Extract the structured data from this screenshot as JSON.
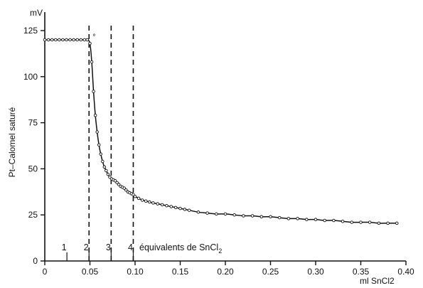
{
  "chart_data": {
    "type": "line",
    "ylabel": "Pt–Calomel saturé",
    "y_unit": "mV",
    "x_unit": "ml SnCl2",
    "xlim": [
      0,
      0.4
    ],
    "ylim": [
      0,
      125
    ],
    "x_ticks": [
      {
        "value": 0,
        "label": "0"
      },
      {
        "value": 0.05,
        "label": "0.05"
      },
      {
        "value": 0.1,
        "label": "0.10"
      },
      {
        "value": 0.15,
        "label": "0.15"
      },
      {
        "value": 0.2,
        "label": "0.20"
      },
      {
        "value": 0.25,
        "label": "0.25"
      },
      {
        "value": 0.3,
        "label": "0.30"
      },
      {
        "value": 0.35,
        "label": "0.35"
      },
      {
        "value": 0.4,
        "label": "0.40"
      }
    ],
    "y_ticks": [
      {
        "value": 0,
        "label": "0"
      },
      {
        "value": 25,
        "label": "25"
      },
      {
        "value": 50,
        "label": "50"
      },
      {
        "value": 75,
        "label": "75"
      },
      {
        "value": 100,
        "label": "100"
      },
      {
        "value": 125,
        "label": "125"
      }
    ],
    "equivalents": {
      "markers": [
        {
          "label": "1",
          "x": 0.0245,
          "dashed": false
        },
        {
          "label": "2",
          "x": 0.049,
          "dashed": true
        },
        {
          "label": "3",
          "x": 0.0735,
          "dashed": true
        },
        {
          "label": "4",
          "x": 0.098,
          "dashed": true
        }
      ],
      "caption_prefix": "équivalents de SnCl",
      "caption_subscript": "2"
    },
    "series": [
      {
        "x": [
          0,
          0.004,
          0.008,
          0.012,
          0.016,
          0.02,
          0.024,
          0.028,
          0.032,
          0.036,
          0.04,
          0.044,
          0.047,
          0.05,
          0.052,
          0.054,
          0.056,
          0.058,
          0.06,
          0.062,
          0.064,
          0.066,
          0.068,
          0.07,
          0.072,
          0.074,
          0.076,
          0.078,
          0.08,
          0.082,
          0.084,
          0.086,
          0.088,
          0.09,
          0.092,
          0.094,
          0.096,
          0.098,
          0.1,
          0.104,
          0.108,
          0.112,
          0.116,
          0.12,
          0.125,
          0.13,
          0.135,
          0.14,
          0.145,
          0.15,
          0.155,
          0.16,
          0.17,
          0.18,
          0.19,
          0.2,
          0.21,
          0.22,
          0.23,
          0.24,
          0.25,
          0.26,
          0.27,
          0.28,
          0.29,
          0.3,
          0.31,
          0.32,
          0.33,
          0.34,
          0.35,
          0.36,
          0.37,
          0.38,
          0.39
        ],
        "y": [
          120,
          120,
          120,
          120,
          120,
          120,
          120,
          120,
          120,
          120,
          120,
          120,
          120,
          118,
          108,
          92,
          79,
          70,
          63,
          58,
          54,
          51,
          49,
          47,
          45.5,
          44.5,
          44,
          43.5,
          42.5,
          41.5,
          40.5,
          40,
          39.5,
          38.5,
          37.5,
          37,
          36.5,
          36,
          35,
          34,
          33,
          32.5,
          32,
          31.5,
          31,
          30.5,
          30,
          29.5,
          29,
          28.5,
          28,
          27.5,
          26.5,
          26,
          25.5,
          25.5,
          25,
          24.5,
          24.5,
          24,
          24,
          23.5,
          23,
          23,
          22.5,
          22.5,
          22,
          22,
          21.5,
          21,
          21,
          21,
          20.5,
          20.5,
          20.5
        ]
      }
    ],
    "annotations": [
      {
        "text": "°",
        "x": 0.053,
        "y": 117
      }
    ]
  }
}
